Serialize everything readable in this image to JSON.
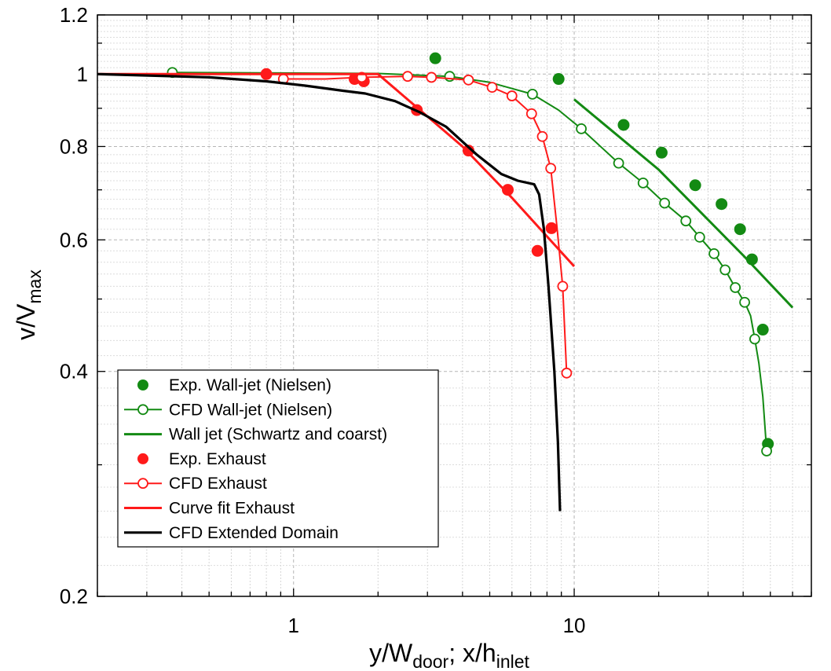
{
  "chart_data": {
    "type": "line",
    "xscale": "log",
    "yscale": "log",
    "xlim": [
      0.2,
      70
    ],
    "ylim": [
      0.2,
      1.2
    ],
    "xlabel": {
      "main": "y/W",
      "sub1": "door",
      "sep": "; x/h",
      "sub2": "inlet"
    },
    "ylabel": {
      "main": "v/V",
      "sub": "max"
    },
    "x_major_ticks": [
      {
        "value": 1,
        "label": "1"
      },
      {
        "value": 10,
        "label": "10"
      }
    ],
    "y_major_ticks": [
      {
        "value": 0.2,
        "label": "0.2"
      },
      {
        "value": 0.4,
        "label": "0.4"
      },
      {
        "value": 0.6,
        "label": "0.6"
      },
      {
        "value": 0.8,
        "label": "0.8"
      },
      {
        "value": 1.0,
        "label": "1"
      },
      {
        "value": 1.2,
        "label": "1.2"
      }
    ],
    "grid": true,
    "legend_position": "bottom-left",
    "colors": {
      "green": "#138a13",
      "red": "#ff1a1a",
      "black": "#000000"
    },
    "series": [
      {
        "name": "Exp. Wall-jet (Nielsen)",
        "color": "#138a13",
        "style": "filled-marker",
        "points": [
          [
            3.2,
            1.05
          ],
          [
            8.8,
            0.985
          ],
          [
            15,
            0.855
          ],
          [
            20.5,
            0.785
          ],
          [
            27,
            0.71
          ],
          [
            33.5,
            0.67
          ],
          [
            39,
            0.62
          ],
          [
            43,
            0.565
          ],
          [
            47,
            0.455
          ],
          [
            49,
            0.32
          ]
        ]
      },
      {
        "name": "CFD Wall-jet (Nielsen)",
        "color": "#138a13",
        "style": "open-marker-line",
        "points": [
          [
            0.37,
            1.005
          ],
          [
            3.6,
            0.993
          ],
          [
            7.1,
            0.94
          ],
          [
            10.6,
            0.845
          ],
          [
            14.4,
            0.76
          ],
          [
            17.6,
            0.715
          ],
          [
            21,
            0.672
          ],
          [
            25,
            0.636
          ],
          [
            28,
            0.605
          ],
          [
            31.5,
            0.575
          ],
          [
            34.5,
            0.547
          ],
          [
            37.5,
            0.518
          ],
          [
            40.5,
            0.495
          ],
          [
            44,
            0.442
          ],
          [
            48.5,
            0.313
          ]
        ],
        "line": [
          [
            0.37,
            1.005
          ],
          [
            2,
            1.002
          ],
          [
            3.6,
            0.993
          ],
          [
            5,
            0.975
          ],
          [
            7.1,
            0.94
          ],
          [
            8.8,
            0.895
          ],
          [
            10.6,
            0.845
          ],
          [
            14.4,
            0.76
          ],
          [
            17.6,
            0.715
          ],
          [
            21,
            0.672
          ],
          [
            25,
            0.636
          ],
          [
            28,
            0.605
          ],
          [
            31.5,
            0.575
          ],
          [
            34.5,
            0.547
          ],
          [
            37.5,
            0.518
          ],
          [
            40.5,
            0.495
          ],
          [
            42.5,
            0.475
          ],
          [
            44,
            0.442
          ],
          [
            45.5,
            0.41
          ],
          [
            47,
            0.37
          ],
          [
            48.5,
            0.313
          ]
        ]
      },
      {
        "name": "Wall jet (Schwartz and coarst)",
        "color": "#138a13",
        "style": "line",
        "line": [
          [
            10,
            0.925
          ],
          [
            20,
            0.745
          ],
          [
            40,
            0.572
          ],
          [
            60,
            0.487
          ]
        ]
      },
      {
        "name": "Exp. Exhaust",
        "color": "#ff1a1a",
        "style": "filled-marker",
        "points": [
          [
            0.8,
            1.0
          ],
          [
            1.65,
            0.985
          ],
          [
            1.78,
            0.978
          ],
          [
            2.75,
            0.895
          ],
          [
            4.2,
            0.79
          ],
          [
            5.8,
            0.7
          ],
          [
            7.4,
            0.58
          ],
          [
            8.3,
            0.622
          ]
        ]
      },
      {
        "name": "CFD Exhaust",
        "color": "#ff1a1a",
        "style": "open-marker-line",
        "points": [
          [
            0.92,
            0.985
          ],
          [
            1.75,
            0.99
          ],
          [
            2.55,
            0.993
          ],
          [
            3.1,
            0.99
          ],
          [
            4.2,
            0.982
          ],
          [
            5.1,
            0.96
          ],
          [
            6.0,
            0.935
          ],
          [
            7.05,
            0.885
          ],
          [
            7.7,
            0.825
          ],
          [
            8.25,
            0.748
          ],
          [
            9.1,
            0.52
          ],
          [
            9.4,
            0.398
          ]
        ],
        "line": [
          [
            0.92,
            0.985
          ],
          [
            1.3,
            0.985
          ],
          [
            1.75,
            0.99
          ],
          [
            2.55,
            0.993
          ],
          [
            3.1,
            0.99
          ],
          [
            4.2,
            0.982
          ],
          [
            5.1,
            0.96
          ],
          [
            6.0,
            0.935
          ],
          [
            7.05,
            0.885
          ],
          [
            7.7,
            0.825
          ],
          [
            8.25,
            0.748
          ],
          [
            8.7,
            0.62
          ],
          [
            9.1,
            0.52
          ],
          [
            9.4,
            0.398
          ]
        ]
      },
      {
        "name": "Curve fit Exhaust",
        "color": "#ff1a1a",
        "style": "line",
        "line": [
          [
            0.2,
            1.0
          ],
          [
            1.6,
            1.0
          ],
          [
            2.0,
            1.0
          ],
          [
            4.0,
            0.8
          ],
          [
            6.0,
            0.683
          ],
          [
            10.0,
            0.553
          ]
        ]
      },
      {
        "name": "CFD Extended Domain",
        "color": "#000000",
        "style": "thick-line",
        "line": [
          [
            0.2,
            1.0
          ],
          [
            0.5,
            0.99
          ],
          [
            0.8,
            0.978
          ],
          [
            1.1,
            0.965
          ],
          [
            1.5,
            0.95
          ],
          [
            1.8,
            0.942
          ],
          [
            2.3,
            0.92
          ],
          [
            2.8,
            0.89
          ],
          [
            3.5,
            0.85
          ],
          [
            4.5,
            0.78
          ],
          [
            5.5,
            0.735
          ],
          [
            6.3,
            0.72
          ],
          [
            7.2,
            0.712
          ],
          [
            7.5,
            0.69
          ],
          [
            7.8,
            0.62
          ],
          [
            8.1,
            0.52
          ],
          [
            8.5,
            0.4
          ],
          [
            8.75,
            0.322
          ],
          [
            8.9,
            0.26
          ]
        ]
      }
    ]
  }
}
